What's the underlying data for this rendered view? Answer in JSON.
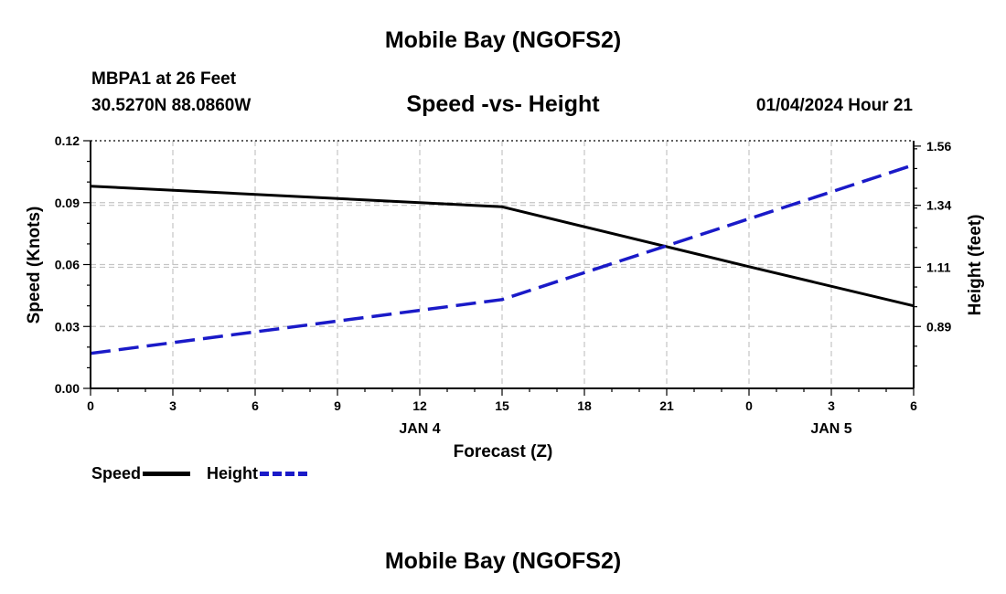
{
  "header": {
    "title": "Mobile Bay (NGOFS2)"
  },
  "footer": {
    "title": "Mobile Bay (NGOFS2)"
  },
  "station": {
    "line1": "MBPA1 at 26 Feet",
    "line2": "30.5270N  88.0860W"
  },
  "timestamp": "01/04/2024 Hour 21",
  "chart_data": {
    "type": "line",
    "title": "Speed -vs- Height",
    "xlabel": "Forecast (Z)",
    "ylabel": "Speed (Knots)",
    "y2label": "Height (feet)",
    "x_hours": [
      0,
      3,
      6,
      9,
      12,
      15,
      18,
      21,
      24,
      27,
      30
    ],
    "x_tick_labels": [
      "0",
      "3",
      "6",
      "9",
      "12",
      "15",
      "18",
      "21",
      "0",
      "3",
      "6"
    ],
    "date_labels": [
      {
        "at_hour": 12,
        "text": "JAN 4"
      },
      {
        "at_hour": 27,
        "text": "JAN 5"
      }
    ],
    "xlim": [
      0,
      30
    ],
    "ylim": [
      0,
      0.12
    ],
    "y_ticks": [
      0,
      0.03,
      0.06,
      0.09,
      0.12
    ],
    "y_tick_labels": [
      "0.00",
      "0.03",
      "0.06",
      "0.09",
      "0.12"
    ],
    "y2lim": [
      0.66,
      1.58
    ],
    "y2_ticks": [
      0.89,
      1.11,
      1.34,
      1.56
    ],
    "y2_tick_labels": [
      "0.89",
      "1.11",
      "1.34",
      "1.56"
    ],
    "grid": true,
    "legend": "bottom-left",
    "series": [
      {
        "name": "Speed",
        "axis": "left",
        "color": "#000000",
        "dash": "solid",
        "x": [
          0,
          15,
          24,
          30
        ],
        "values": [
          0.098,
          0.088,
          0.059,
          0.04
        ]
      },
      {
        "name": "Height",
        "axis": "right",
        "color": "#1a1ac8",
        "dash": "dashed",
        "x": [
          0,
          15,
          21,
          30
        ],
        "values": [
          0.79,
          0.99,
          1.19,
          1.49
        ]
      }
    ]
  }
}
